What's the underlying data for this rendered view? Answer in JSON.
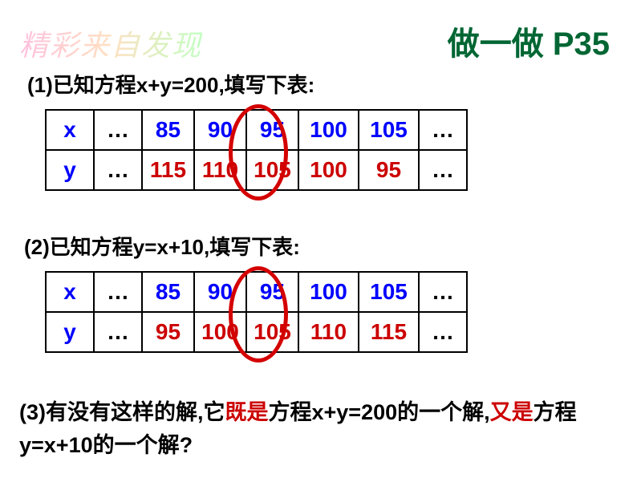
{
  "watermark": "精彩来自发现",
  "headerTitle": "做一做 P35",
  "q1": "(1)已知方程x+y=200,填写下表:",
  "q2": "(2)已知方程y=x+10,填写下表:",
  "q3_p1": "(3)有没有这样的解,它",
  "q3_r1": "既是",
  "q3_p2": "方程x+y=200的一个解,",
  "q3_r2": "又是",
  "q3_p3": "方程y=x+10的一个解?",
  "table1": {
    "row1": {
      "label": "x",
      "d1": "…",
      "c1": "85",
      "c2": "90",
      "c3": "95",
      "c4": "100",
      "c5": "105",
      "d2": "…"
    },
    "row2": {
      "label": "y",
      "d1": "…",
      "c1": "115",
      "c2": "110",
      "c3": "105",
      "c4": "100",
      "c5": "95",
      "d2": "…"
    }
  },
  "table2": {
    "row1": {
      "label": "x",
      "d1": "…",
      "c1": "85",
      "c2": "90",
      "c3": "95",
      "c4": "100",
      "c5": "105",
      "d2": "…"
    },
    "row2": {
      "label": "y",
      "d1": "…",
      "c1": "95",
      "c2": "100",
      "c3": "105",
      "c4": "110",
      "c5": "115",
      "d2": "…"
    }
  },
  "colors": {
    "headerGreen": "#006633",
    "blue": "#0000ff",
    "red": "#cc0000",
    "ellipseRed": "#d40000"
  }
}
